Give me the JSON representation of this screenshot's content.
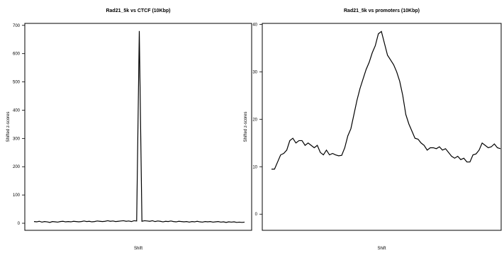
{
  "chart_data": [
    {
      "type": "line",
      "title": "Rad21_5k vs CTCF (10Kbp)",
      "y_label": "Shifted z-scores",
      "x_label": "Shift",
      "color": "#000000",
      "ylim": [
        -25,
        707
      ],
      "yticks": [
        0,
        100,
        200,
        300,
        400,
        500,
        600,
        700
      ],
      "values": [
        6,
        5,
        7,
        4,
        6,
        5,
        3,
        6,
        5,
        4,
        6,
        7,
        5,
        6,
        5,
        7,
        6,
        5,
        6,
        8,
        6,
        7,
        5,
        6,
        8,
        7,
        6,
        7,
        9,
        7,
        8,
        6,
        7,
        8,
        9,
        7,
        8,
        6,
        9,
        8,
        680,
        7,
        9,
        8,
        7,
        9,
        6,
        8,
        7,
        5,
        7,
        6,
        8,
        6,
        5,
        7,
        6,
        5,
        6,
        4,
        6,
        5,
        7,
        5,
        4,
        6,
        5,
        6,
        4,
        5,
        6,
        4,
        5,
        3,
        5,
        4,
        5,
        3,
        4,
        3,
        4
      ]
    },
    {
      "type": "line",
      "title": "Rad21_5k vs promoters (10Kbp)",
      "y_label": "Shifted z-scores",
      "x_label": "Shift",
      "color": "#000000",
      "ylim": [
        -3.4,
        40.2
      ],
      "yticks": [
        0,
        10,
        20,
        30,
        40
      ],
      "values": [
        9.5,
        9.5,
        11,
        12.5,
        12.8,
        13.5,
        15.5,
        16,
        15,
        15.5,
        15.5,
        14.5,
        15,
        14.5,
        14,
        14.5,
        13,
        12.5,
        13.5,
        12.5,
        12.8,
        12.5,
        12.3,
        12.4,
        14,
        16.5,
        18,
        21,
        24,
        26.5,
        28.5,
        30.5,
        32,
        34,
        35.5,
        38,
        38.5,
        36,
        33.5,
        32.5,
        31.5,
        30,
        28,
        25,
        21,
        19,
        17.5,
        16,
        15.8,
        15,
        14.5,
        13.5,
        14,
        14,
        13.8,
        14.2,
        13.5,
        13.8,
        13,
        12.2,
        11.8,
        12.2,
        11.5,
        11.8,
        11,
        11,
        12.5,
        12.7,
        13.5,
        15,
        14.5,
        14,
        14.2,
        14.8,
        14,
        13.8
      ]
    }
  ]
}
